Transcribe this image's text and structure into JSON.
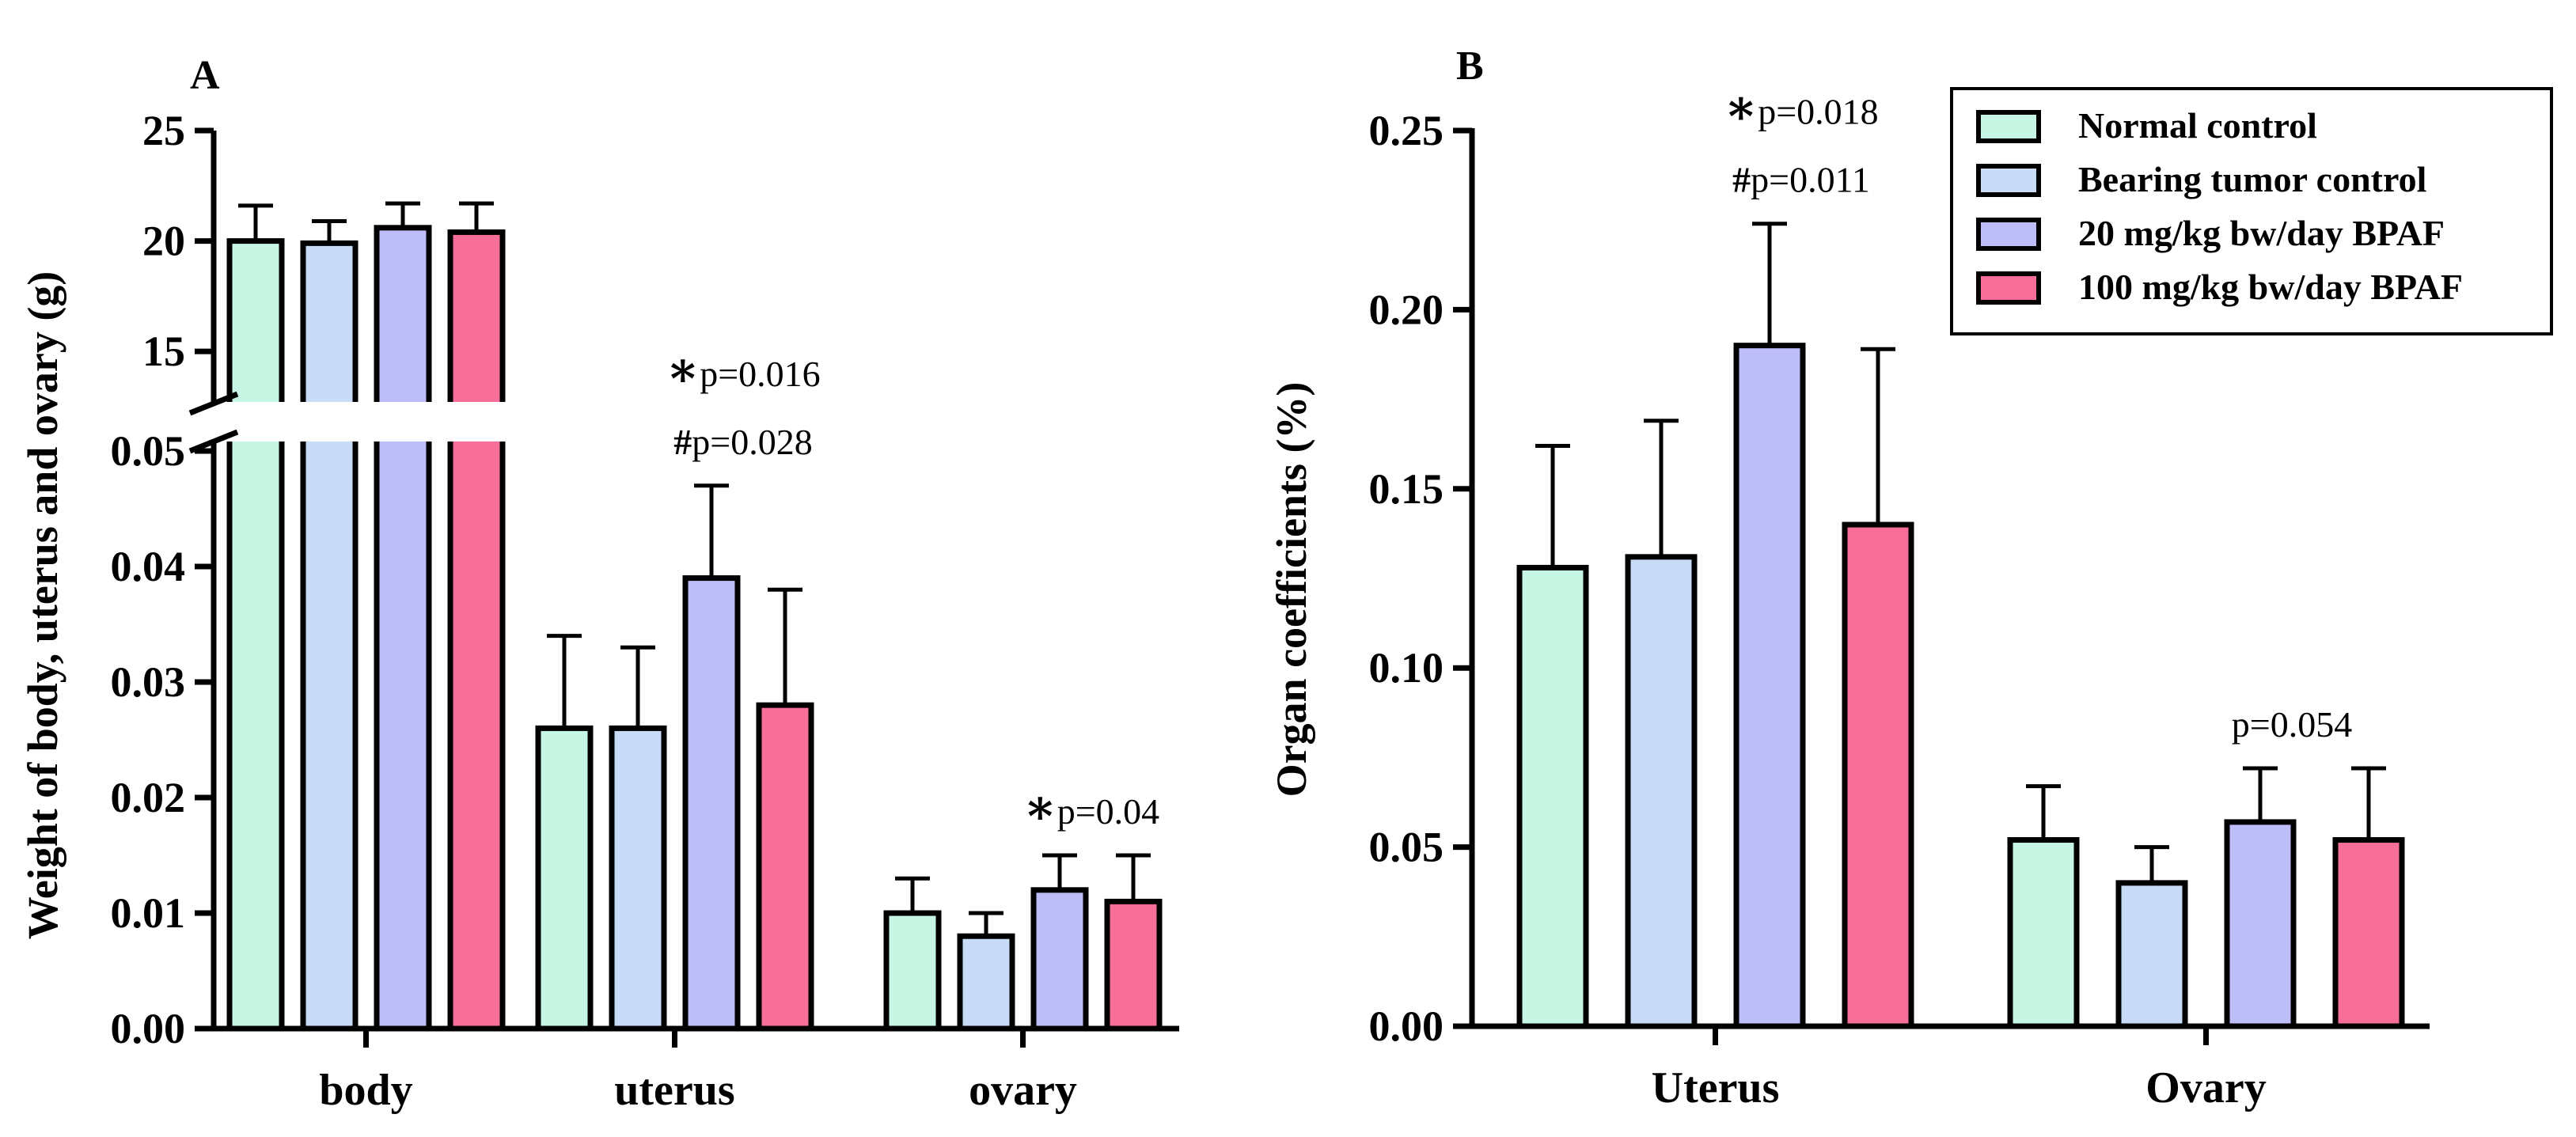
{
  "colors": {
    "series": [
      "#c7f6e4",
      "#c9dcf7",
      "#bcbdf9",
      "#f76f98"
    ],
    "stroke": "#000000",
    "background": "#ffffff"
  },
  "legend_entries": [
    "Normal control",
    "Bearing tumor control",
    "20 mg/kg bw/day BPAF",
    "100 mg/kg bw/day BPAF"
  ],
  "chart_data": [
    {
      "panel": "A",
      "type": "bar",
      "ylabel": "Weight of body, uterus and ovary (g)",
      "xlabel": "",
      "categories": [
        "body",
        "uterus",
        "ovary"
      ],
      "axis_break": {
        "lower_ylim": [
          0,
          0.05
        ],
        "upper_ylim": [
          13,
          25
        ],
        "lower_ticks": [
          0.0,
          0.01,
          0.02,
          0.03,
          0.04,
          0.05
        ],
        "lower_tick_labels": [
          "0.00",
          "0.01",
          "0.02",
          "0.03",
          "0.04",
          "0.05"
        ],
        "upper_ticks": [
          15,
          20,
          25
        ],
        "upper_tick_labels": [
          "15",
          "20",
          "25"
        ]
      },
      "series": [
        {
          "name": "Normal control",
          "values": [
            20.0,
            0.026,
            0.01
          ],
          "errors": [
            1.6,
            0.008,
            0.003
          ]
        },
        {
          "name": "Bearing tumor control",
          "values": [
            19.9,
            0.026,
            0.008
          ],
          "errors": [
            1.0,
            0.007,
            0.002
          ]
        },
        {
          "name": "20 mg/kg bw/day BPAF",
          "values": [
            20.6,
            0.039,
            0.012
          ],
          "errors": [
            1.1,
            0.008,
            0.003
          ]
        },
        {
          "name": "100 mg/kg bw/day BPAF",
          "values": [
            20.4,
            0.028,
            0.011
          ],
          "errors": [
            1.3,
            0.01,
            0.004
          ]
        }
      ],
      "annotations": [
        {
          "category": "uterus",
          "series": 2,
          "lines": [
            {
              "mark": "*",
              "text": "p=0.016"
            },
            {
              "mark": "#",
              "text": "p=0.028"
            }
          ]
        },
        {
          "category": "ovary",
          "series": 2,
          "lines": [
            {
              "mark": "*",
              "text": "p=0.04"
            }
          ]
        }
      ]
    },
    {
      "panel": "B",
      "type": "bar",
      "ylabel": "Organ coefficients (%)",
      "xlabel": "",
      "categories": [
        "Uterus",
        "Ovary"
      ],
      "ylim": [
        0,
        0.25
      ],
      "yticks": [
        0.0,
        0.05,
        0.1,
        0.15,
        0.2,
        0.25
      ],
      "ytick_labels": [
        "0.00",
        "0.05",
        "0.10",
        "0.15",
        "0.20",
        "0.25"
      ],
      "legend": "top-right",
      "series": [
        {
          "name": "Normal control",
          "values": [
            0.128,
            0.052
          ],
          "errors": [
            0.034,
            0.015
          ]
        },
        {
          "name": "Bearing tumor control",
          "values": [
            0.131,
            0.04
          ],
          "errors": [
            0.038,
            0.01
          ]
        },
        {
          "name": "20 mg/kg bw/day BPAF",
          "values": [
            0.19,
            0.057
          ],
          "errors": [
            0.034,
            0.015
          ]
        },
        {
          "name": "100 mg/kg bw/day BPAF",
          "values": [
            0.14,
            0.052
          ],
          "errors": [
            0.049,
            0.02
          ]
        }
      ],
      "annotations": [
        {
          "category": "Uterus",
          "series": 2,
          "lines": [
            {
              "mark": "*",
              "text": "p=0.018"
            },
            {
              "mark": "#",
              "text": "p=0.011"
            }
          ]
        },
        {
          "category": "Ovary",
          "series": 2,
          "lines": [
            {
              "mark": "",
              "text": "p=0.054"
            }
          ]
        }
      ]
    }
  ]
}
